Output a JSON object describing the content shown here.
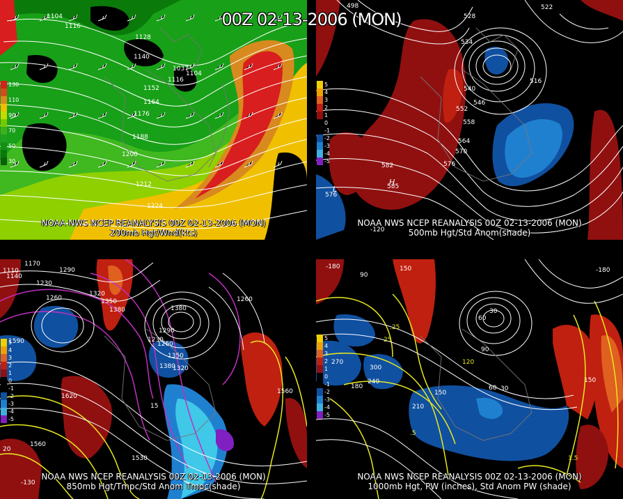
{
  "main_title": "00Z 02-13-2006 (MON)",
  "panels": [
    {
      "id": "p200",
      "source_label": "NOAA NWS NCEP REANALYSIS 00Z 02-13-2006 (MON)",
      "product_label": "200mb Hgt/Wnd(kts)",
      "legend": [
        {
          "label": "130",
          "color": "#d81e1e"
        },
        {
          "label": "",
          "color": "#d84a1e"
        },
        {
          "label": "110",
          "color": "#d88a1e"
        },
        {
          "label": "",
          "color": "#f0c000"
        },
        {
          "label": "90",
          "color": "#c8d800"
        },
        {
          "label": "",
          "color": "#78c800"
        },
        {
          "label": "70",
          "color": "#40b020"
        },
        {
          "label": "",
          "color": "#20a020"
        },
        {
          "label": "50",
          "color": "#149014"
        },
        {
          "label": "",
          "color": "#0c780c"
        },
        {
          "label": "30",
          "color": "#0a600a"
        }
      ],
      "contour_labels": [
        "1104",
        "1116",
        "1128",
        "1140",
        "1152",
        "1164",
        "1176",
        "1188",
        "1200",
        "1212",
        "1224",
        "1104",
        "1116",
        "1037"
      ]
    },
    {
      "id": "p500",
      "source_label": "NOAA NWS NCEP REANALYSIS 00Z 02-13-2006 (MON)",
      "product_label": "500mb Hgt/Std Anom(shade)",
      "legend": [
        {
          "label": "5",
          "color": "#f0d000"
        },
        {
          "label": "4",
          "color": "#f0a000"
        },
        {
          "label": "3",
          "color": "#e06020"
        },
        {
          "label": "2",
          "color": "#c02010"
        },
        {
          "label": "1",
          "color": "#901010"
        },
        {
          "label": "0",
          "color": "#000000"
        },
        {
          "label": "-1",
          "color": "#000000"
        },
        {
          "label": "-2",
          "color": "#1050a0"
        },
        {
          "label": "-3",
          "color": "#2080d0"
        },
        {
          "label": "-4",
          "color": "#40b0e0"
        },
        {
          "label": "-5",
          "color": "#8020c0"
        }
      ],
      "contour_labels": [
        "498",
        "528",
        "534",
        "522",
        "516",
        "540",
        "546",
        "552",
        "558",
        "564",
        "570",
        "576",
        "582",
        "585",
        "576",
        "-120"
      ],
      "high_label": "H",
      "low_label": "L"
    },
    {
      "id": "p850",
      "source_label": "NOAA NWS NCEP REANALYSIS 00Z 02-13-2006 (MON)",
      "product_label": "850mb Hgt/Tmpc/Std Anom Tmpc(shade)",
      "legend": [
        {
          "label": "5",
          "color": "#f0d000"
        },
        {
          "label": "4",
          "color": "#f0a000"
        },
        {
          "label": "3",
          "color": "#e06020"
        },
        {
          "label": "2",
          "color": "#c02010"
        },
        {
          "label": "1",
          "color": "#901010"
        },
        {
          "label": "0",
          "color": "#000000"
        },
        {
          "label": "-1",
          "color": "#000000"
        },
        {
          "label": "-2",
          "color": "#1050a0"
        },
        {
          "label": "-3",
          "color": "#2080d0"
        },
        {
          "label": "-4",
          "color": "#40b0e0"
        },
        {
          "label": "-5",
          "color": "#8020c0"
        }
      ],
      "contour_labels": [
        "1110",
        "1170",
        "1140",
        "1230",
        "1260",
        "1290",
        "1320",
        "1350",
        "1380",
        "1380",
        "1230",
        "1260",
        "1590",
        "1620",
        "1560",
        "1530",
        "1380",
        "1260",
        "1560",
        "15",
        "20",
        "-130",
        "1350",
        "1320",
        "1290"
      ]
    },
    {
      "id": "p1000",
      "source_label": "NOAA NWS NCEP REANALYSIS 00Z 02-13-2006 (MON)",
      "product_label": "1000mb Hgt, PW (inches), Std Anom PW (shade)",
      "legend": [
        {
          "label": "5",
          "color": "#f0d000"
        },
        {
          "label": "4",
          "color": "#f0a000"
        },
        {
          "label": "3",
          "color": "#e06020"
        },
        {
          "label": "2",
          "color": "#c02010"
        },
        {
          "label": "1",
          "color": "#901010"
        },
        {
          "label": "0",
          "color": "#000000"
        },
        {
          "label": "-1",
          "color": "#000000"
        },
        {
          "label": "-2",
          "color": "#1050a0"
        },
        {
          "label": "-3",
          "color": "#2080d0"
        },
        {
          "label": "-4",
          "color": "#40b0e0"
        },
        {
          "label": "-5",
          "color": "#8020c0"
        }
      ],
      "contour_labels": [
        "-180",
        "150",
        "90",
        "60",
        "30",
        ".25",
        "25",
        "270",
        "300",
        "240",
        "180",
        "210",
        "150",
        "120",
        "90",
        "60",
        "30",
        "1.5",
        "150",
        ".5",
        "-180"
      ]
    }
  ]
}
